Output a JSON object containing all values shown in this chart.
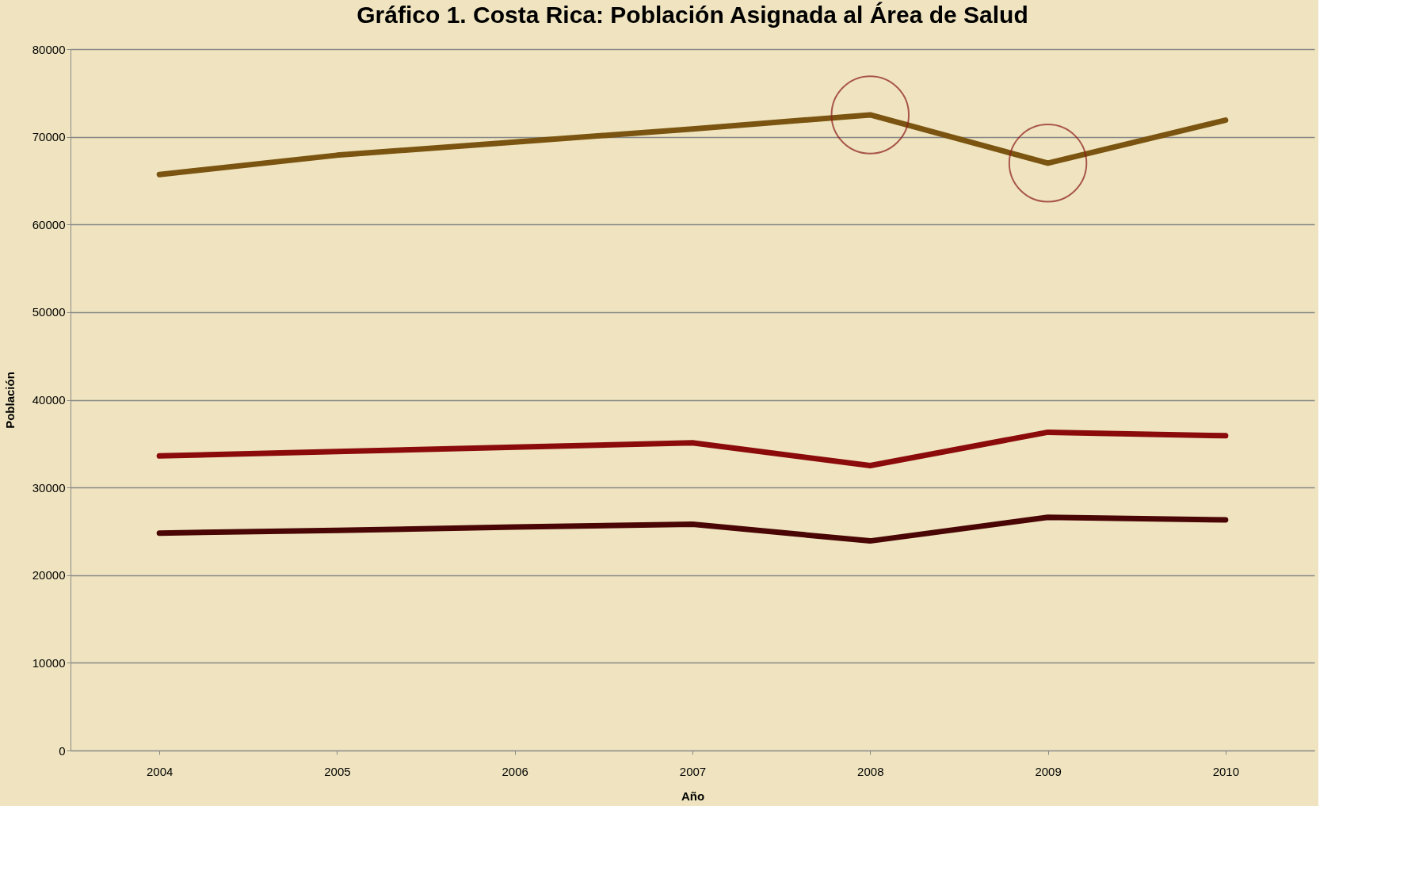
{
  "chart_data": {
    "type": "line",
    "title": "Gráfico 1. Costa Rica: Población Asignada al Área de Salud",
    "xlabel": "Año",
    "ylabel": "Población",
    "categories": [
      "2004",
      "2005",
      "2006",
      "2007",
      "2008",
      "2009",
      "2010"
    ],
    "series": [
      {
        "color": "#7a5410",
        "values": [
          65700,
          67900,
          69400,
          70900,
          72500,
          67000,
          71900
        ]
      },
      {
        "color": "#8b0a0a",
        "values": [
          33600,
          34100,
          34600,
          35100,
          32500,
          36300,
          35900
        ]
      },
      {
        "color": "#4a0505",
        "values": [
          24800,
          25100,
          25500,
          25800,
          23900,
          26600,
          26300
        ]
      },
      {
        "type": "scatter",
        "color": "#8b1a1a",
        "marker": "circle",
        "values": [
          null,
          null,
          null,
          null,
          72500,
          67000,
          null
        ]
      }
    ],
    "ylim": [
      0,
      80000
    ],
    "yticks": [
      0,
      10000,
      20000,
      30000,
      40000,
      50000,
      60000,
      70000,
      80000
    ],
    "grid": "y"
  }
}
